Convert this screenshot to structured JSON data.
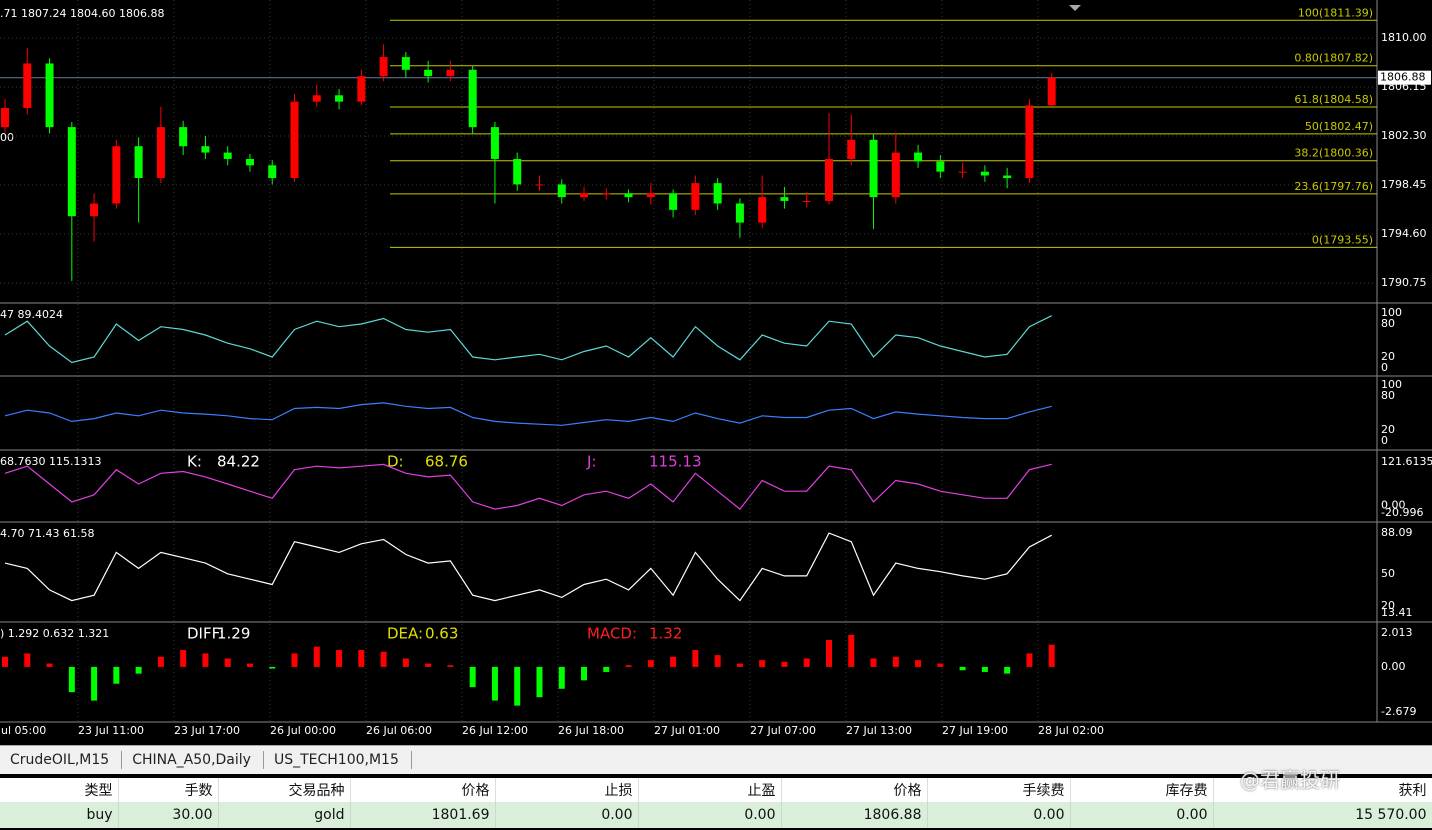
{
  "chart_data": {
    "type": "candlestick",
    "header": ".71 1807.24 1804.60 1806.88",
    "left_label": "00",
    "up_color": "#ff0000",
    "down_color": "#00ff00",
    "ylim": [
      1789.42,
      1812.59
    ],
    "yticks": [
      {
        "value": 1810,
        "label": "1810.00"
      },
      1806.15,
      {
        "value": 1802.3,
        "label": "1802.30"
      },
      1798.45,
      {
        "value": 1794.6,
        "label": "1794.60"
      },
      1790.75
    ],
    "grid": true,
    "current_price": 1806.88,
    "open": [
      1803,
      1804.5,
      1808,
      1803,
      1796,
      1797,
      1801.5,
      1799,
      1803,
      1801.5,
      1801,
      1800.5,
      1800,
      1799,
      1805,
      1805.5,
      1805,
      1807,
      1808.5,
      1807.5,
      1807,
      1807.5,
      1803,
      1800.5,
      1798.5,
      1798.5,
      1797.5,
      1797.8,
      1797.8,
      1797.5,
      1797.8,
      1796.5,
      1798.6,
      1797,
      1795.5,
      1797.5,
      1797.2,
      1797.2,
      1800.5,
      1802,
      1797.5,
      1801,
      1800.3,
      1799.5,
      1799.5,
      1799.2,
      1799,
      1804.71
    ],
    "high": [
      1805.2,
      1809.2,
      1808.4,
      1803.4,
      1797.8,
      1802,
      1802.2,
      1804.6,
      1803.5,
      1802.3,
      1801.5,
      1800.9,
      1800.4,
      1805.6,
      1806.3,
      1806,
      1807.5,
      1809.5,
      1808.9,
      1808.2,
      1808.2,
      1807.8,
      1803.4,
      1801,
      1799.2,
      1798.9,
      1798.3,
      1798.2,
      1798.1,
      1798.6,
      1798.1,
      1799.2,
      1799,
      1797.4,
      1799.2,
      1798.3,
      1797.9,
      1804.1,
      1804,
      1802.5,
      1802.6,
      1801.6,
      1800.8,
      1800.2,
      1800,
      1799.8,
      1805.2,
      1807.24
    ],
    "low": [
      1802.6,
      1804,
      1802.5,
      1790.9,
      1794,
      1796.6,
      1795.5,
      1798.6,
      1800.8,
      1800.5,
      1800,
      1799.5,
      1798.5,
      1798.7,
      1804.6,
      1804.4,
      1804.7,
      1806.6,
      1806.9,
      1806.5,
      1806.6,
      1802.5,
      1797,
      1798,
      1798,
      1797,
      1797.2,
      1797.3,
      1797.1,
      1796.9,
      1795.9,
      1796.1,
      1796.5,
      1794.3,
      1795.1,
      1796.6,
      1796.7,
      1796.9,
      1800,
      1795,
      1797,
      1799.8,
      1799,
      1799,
      1798.7,
      1798.2,
      1798.6,
      1804.6
    ],
    "close": [
      1804.5,
      1808,
      1803,
      1796,
      1797,
      1801.5,
      1799,
      1803,
      1801.5,
      1801,
      1800.5,
      1800,
      1799,
      1805,
      1805.5,
      1805,
      1807,
      1808.5,
      1807.5,
      1807,
      1807.5,
      1803,
      1800.5,
      1798.5,
      1798.5,
      1797.5,
      1797.8,
      1797.8,
      1797.5,
      1797.8,
      1796.5,
      1798.6,
      1797,
      1795.5,
      1797.5,
      1797.2,
      1797.2,
      1800.5,
      1802,
      1797.5,
      1801,
      1800.3,
      1799.5,
      1799.5,
      1799.2,
      1799,
      1804.7,
      1806.88
    ],
    "fibonacci_color": "#c8c800",
    "fibonacci": [
      {
        "label": "100(1811.39)",
        "price": 1811.39
      },
      {
        "label": "0.80(1807.82)",
        "price": 1807.82
      },
      {
        "label": "61.8(1804.58)",
        "price": 1804.58
      },
      {
        "label": "50(1802.47)",
        "price": 1802.47
      },
      {
        "label": "38.2(1800.36)",
        "price": 1800.36
      },
      {
        "label": "23.6(1797.76)",
        "price": 1797.76
      },
      {
        "label": "0(1793.55)",
        "price": 1793.55
      }
    ],
    "time_labels": [
      "ul 05:00",
      "23 Jul 11:00",
      "23 Jul 17:00",
      "26 Jul 00:00",
      "26 Jul 06:00",
      "26 Jul 12:00",
      "26 Jul 18:00",
      "27 Jul 01:00",
      "27 Jul 07:00",
      "27 Jul 13:00",
      "27 Jul 19:00",
      "28 Jul 02:00"
    ],
    "indicators": [
      {
        "type": "line",
        "header": "47 89.4024",
        "color": "#5fd7d7",
        "ylim": [
          -12.7,
          114.5
        ],
        "yticks": [
          100,
          80,
          20,
          0
        ],
        "values": [
          60,
          85,
          40,
          10,
          20,
          80,
          50,
          75,
          70,
          60,
          45,
          35,
          20,
          70,
          85,
          75,
          80,
          90,
          70,
          65,
          70,
          20,
          15,
          20,
          25,
          15,
          30,
          40,
          20,
          55,
          20,
          75,
          40,
          15,
          60,
          45,
          40,
          85,
          80,
          20,
          60,
          55,
          40,
          30,
          20,
          25,
          75,
          95
        ]
      },
      {
        "type": "line",
        "color": "#3a7fff",
        "ylim": [
          -12.5,
          112.5
        ],
        "yticks": [
          100,
          80,
          20,
          0
        ],
        "values": [
          45,
          55,
          50,
          35,
          40,
          50,
          45,
          55,
          50,
          48,
          45,
          40,
          38,
          58,
          60,
          58,
          65,
          68,
          62,
          58,
          60,
          42,
          35,
          32,
          30,
          28,
          33,
          38,
          35,
          42,
          35,
          50,
          40,
          32,
          45,
          42,
          42,
          55,
          58,
          40,
          52,
          48,
          45,
          42,
          40,
          40,
          52,
          62
        ]
      },
      {
        "type": "line",
        "header": "68.7630 115.1313",
        "color": "#e040e0",
        "ylim": [
          -40.57,
          149.6
        ],
        "yticks": [
          121.6135,
          {
            "value": 0,
            "label": "0.00"
          },
          -20.996
        ],
        "labels": [
          {
            "name": "K:",
            "value": "84.22",
            "color": "#ffffff"
          },
          {
            "name": "D:",
            "value": "68.76",
            "color": "#e0e000"
          },
          {
            "name": "J:",
            "value": "115.13",
            "color": "#e040e0"
          }
        ],
        "values": [
          90,
          110,
          60,
          10,
          30,
          100,
          60,
          90,
          95,
          80,
          60,
          40,
          20,
          100,
          110,
          105,
          110,
          115,
          90,
          80,
          85,
          10,
          -10,
          0,
          20,
          0,
          30,
          40,
          20,
          60,
          10,
          90,
          40,
          -10,
          70,
          40,
          40,
          110,
          100,
          10,
          70,
          60,
          40,
          30,
          20,
          20,
          100,
          115.13
        ]
      },
      {
        "type": "line",
        "header": "4.70 71.43 61.58",
        "color": "#ffffff",
        "ylim": [
          6.88,
          96.49
        ],
        "yticks": [
          88.09,
          50,
          20,
          13.41
        ],
        "values": [
          60,
          55,
          35,
          25,
          30,
          70,
          55,
          70,
          65,
          60,
          50,
          45,
          40,
          80,
          75,
          70,
          78,
          82,
          68,
          60,
          62,
          30,
          25,
          30,
          35,
          28,
          40,
          45,
          35,
          55,
          30,
          70,
          45,
          25,
          55,
          48,
          48,
          88,
          80,
          30,
          60,
          55,
          52,
          48,
          45,
          50,
          75,
          86
        ]
      },
      {
        "type": "histogram",
        "header": ") 1.292 0.632 1.321",
        "up_color": "#ff0000",
        "down_color": "#00ff00",
        "ylim": [
          -3.154,
          2.548
        ],
        "yticks": [
          2.013,
          {
            "value": 0,
            "label": "0.00"
          },
          -2.679
        ],
        "labels": [
          {
            "name": "DIFF:",
            "value": "1.29",
            "color": "#ffffff"
          },
          {
            "name": "DEA:",
            "value": "0.63",
            "color": "#e0e000"
          },
          {
            "name": "MACD:",
            "value": "1.32",
            "color": "#ff2020"
          }
        ],
        "values": [
          0.6,
          0.8,
          0.2,
          -1.5,
          -2.0,
          -1.0,
          -0.4,
          0.6,
          1.0,
          0.8,
          0.5,
          0.2,
          -0.1,
          0.8,
          1.2,
          1.0,
          1.0,
          0.9,
          0.5,
          0.2,
          0.1,
          -1.2,
          -2.0,
          -2.3,
          -1.8,
          -1.3,
          -0.8,
          -0.3,
          0.1,
          0.4,
          0.6,
          1.0,
          0.7,
          0.2,
          0.4,
          0.3,
          0.5,
          1.6,
          1.9,
          0.5,
          0.6,
          0.4,
          0.2,
          -0.2,
          -0.3,
          -0.4,
          0.8,
          1.32
        ]
      }
    ]
  },
  "tabs": [
    "CrudeOIL,M15",
    "CHINA_A50,Daily",
    "US_TECH100,M15"
  ],
  "watermark": "@君赢投研",
  "table": {
    "headers": [
      "类型",
      "手数",
      "交易品种",
      "价格",
      "止损",
      "止盈",
      "价格",
      "手续费",
      "库存费",
      "获利"
    ],
    "rows": [
      [
        "buy",
        "30.00",
        "gold",
        "1801.69",
        "0.00",
        "0.00",
        "1806.88",
        "0.00",
        "0.00",
        "15 570.00"
      ]
    ]
  }
}
